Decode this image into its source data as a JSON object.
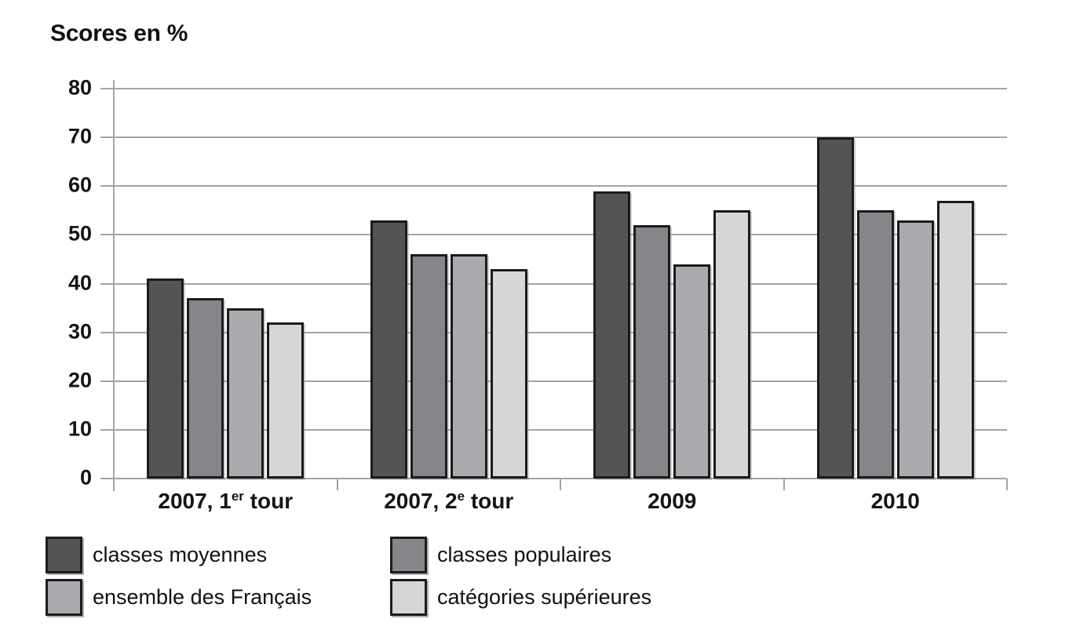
{
  "chart_data": {
    "type": "bar",
    "title": "Scores en %",
    "categories": [
      "2007, 1er tour",
      "2007, 2e tour",
      "2009",
      "2010"
    ],
    "category_labels": [
      {
        "base": "2007, 1",
        "sup": "er",
        "rest": " tour"
      },
      {
        "base": "2007, 2",
        "sup": "e",
        "rest": " tour"
      },
      {
        "base": "2009",
        "sup": "",
        "rest": ""
      },
      {
        "base": "2010",
        "sup": "",
        "rest": ""
      }
    ],
    "series": [
      {
        "name": "classes moyennes",
        "color": "#545456",
        "values": [
          41,
          53,
          59,
          70
        ]
      },
      {
        "name": "classes populaires",
        "color": "#848689",
        "values": [
          37,
          46,
          52,
          55
        ]
      },
      {
        "name": "ensemble des Français",
        "color": "#a9abae",
        "values": [
          35,
          46,
          44,
          53
        ]
      },
      {
        "name": "catégories supérieures",
        "color": "#d5d6d8",
        "values": [
          32,
          43,
          55,
          57
        ]
      }
    ],
    "ylabel": "Scores en %",
    "ylim": [
      0,
      80
    ],
    "yticks": [
      0,
      10,
      20,
      30,
      40,
      50,
      60,
      70,
      80
    ],
    "grid": true,
    "legend_position": "bottom-left",
    "colors": {
      "gridline": "#a4a4a4",
      "bar_border": "#1b1b1b",
      "text": "#151515",
      "background": "#ffffff"
    }
  }
}
